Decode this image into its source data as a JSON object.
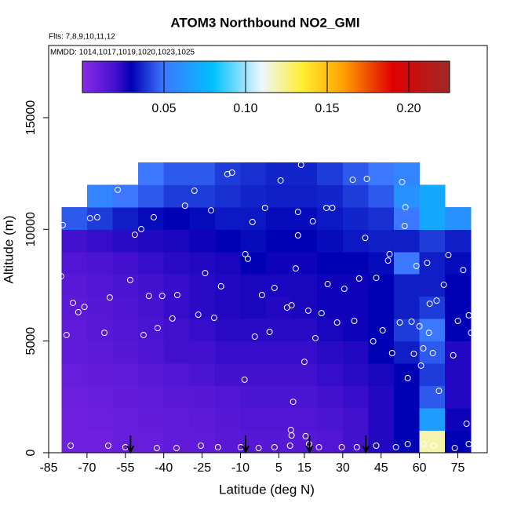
{
  "chart_data": {
    "type": "heatmap",
    "title": "ATOM3 Northbound NO2_GMI",
    "subtitle": "Flts: 7,8,9,10,11,12",
    "annotation": "MMDD: 1014,1017,1019,1020,1023,1025",
    "xlabel": "Latitude (deg N)",
    "ylabel": "Altitude (m)",
    "xlim": [
      -85,
      86.5
    ],
    "ylim": [
      0,
      18230
    ],
    "xticks": [
      -85,
      -70,
      -55,
      -40,
      -25,
      -10,
      5,
      15,
      30,
      45,
      60,
      75
    ],
    "yticks": [
      0,
      5000,
      10000,
      15000
    ],
    "clim": [
      0,
      0.225
    ],
    "cticks": [
      0.05,
      {
        "value": 0.1,
        "label": "0.10"
      },
      0.15,
      {
        "value": 0.2,
        "label": "0.20"
      }
    ],
    "colormap": [
      {
        "value": 0,
        "color": "#8a2be8"
      },
      {
        "value": 0.02,
        "color": "#4410d0"
      },
      {
        "value": 0.03,
        "color": "#0000b4"
      },
      {
        "value": 0.05,
        "color": "#3c78ff"
      },
      {
        "value": 0.08,
        "color": "#00c0ff"
      },
      {
        "value": 0.11,
        "color": "#eef6ff"
      },
      {
        "value": 0.135,
        "color": "#ffee30"
      },
      {
        "value": 0.16,
        "color": "#ffa000"
      },
      {
        "value": 0.19,
        "color": "#e00000"
      },
      {
        "value": 0.225,
        "color": "#a02828"
      }
    ],
    "x_edges": [
      -80,
      -70,
      -60,
      -50,
      -40,
      -30,
      -20,
      -10,
      0,
      10,
      20,
      30,
      40,
      50,
      60,
      70,
      80
    ],
    "y_edges": [
      0,
      1000,
      2000,
      3000,
      4000,
      5000,
      6000,
      7000,
      8000,
      9000,
      10000,
      11000,
      12000,
      13000
    ],
    "z": [
      [
        0.008,
        0.008,
        0.01,
        0.01,
        0.012,
        0.012,
        0.014,
        0.015,
        0.015,
        0.015,
        0.016,
        0.02,
        0.025,
        0.03,
        0.12,
        0.03
      ],
      [
        0.008,
        0.009,
        0.01,
        0.011,
        0.012,
        0.013,
        0.015,
        0.016,
        0.016,
        0.016,
        0.018,
        0.02,
        0.025,
        0.03,
        0.065,
        0.028
      ],
      [
        0.009,
        0.01,
        0.011,
        0.012,
        0.014,
        0.015,
        0.016,
        0.018,
        0.018,
        0.018,
        0.02,
        0.022,
        0.025,
        0.03,
        0.045,
        0.025
      ],
      [
        0.01,
        0.011,
        0.012,
        0.014,
        0.016,
        0.018,
        0.02,
        0.02,
        0.02,
        0.02,
        0.022,
        0.024,
        0.026,
        0.03,
        0.04,
        0.025
      ],
      [
        0.012,
        0.013,
        0.015,
        0.017,
        0.02,
        0.02,
        0.022,
        0.022,
        0.022,
        0.022,
        0.024,
        0.025,
        0.03,
        0.035,
        0.045,
        0.025
      ],
      [
        0.012,
        0.014,
        0.016,
        0.018,
        0.02,
        0.022,
        0.024,
        0.024,
        0.024,
        0.024,
        0.026,
        0.028,
        0.03,
        0.04,
        0.05,
        0.03
      ],
      [
        0.013,
        0.015,
        0.017,
        0.019,
        0.022,
        0.024,
        0.025,
        0.026,
        0.025,
        0.026,
        0.028,
        0.028,
        0.03,
        0.035,
        0.04,
        0.03
      ],
      [
        0.014,
        0.016,
        0.018,
        0.02,
        0.022,
        0.024,
        0.025,
        0.026,
        0.026,
        0.026,
        0.028,
        0.028,
        0.03,
        0.035,
        0.035,
        0.03
      ],
      [
        0.016,
        0.018,
        0.02,
        0.022,
        0.024,
        0.025,
        0.026,
        0.03,
        0.028,
        0.028,
        0.03,
        0.03,
        0.032,
        0.05,
        0.035,
        0.032
      ],
      [
        0.02,
        0.022,
        0.024,
        0.025,
        0.026,
        0.028,
        0.03,
        0.032,
        0.03,
        0.03,
        0.032,
        0.034,
        0.035,
        0.035,
        0.04,
        0.035
      ],
      [
        0.045,
        0.04,
        0.035,
        0.032,
        0.03,
        0.032,
        0.034,
        0.034,
        0.032,
        0.032,
        0.034,
        0.036,
        0.038,
        0.05,
        0.07,
        0.06
      ],
      [
        null,
        0.055,
        0.05,
        0.045,
        0.04,
        0.04,
        0.038,
        0.036,
        0.035,
        0.035,
        0.036,
        0.04,
        0.045,
        0.06,
        0.07,
        null
      ],
      [
        null,
        null,
        null,
        0.05,
        0.045,
        0.045,
        0.04,
        0.038,
        0.036,
        0.036,
        0.04,
        0.045,
        0.05,
        0.055,
        null,
        null
      ]
    ],
    "points_x": [
      -80.1,
      -79.5,
      -78,
      -75.5,
      -73.4,
      -71,
      -68.8,
      -66,
      -63.2,
      -61.1,
      -58,
      -53.1,
      -51.3,
      -48.8,
      -47.9,
      -45.8,
      -43.9,
      -42.4,
      -40.6,
      -36.6,
      -34.7,
      -31.7,
      -28,
      -26.5,
      -23.8,
      -21.5,
      -20.3,
      -17.6,
      -15.1,
      -13.3,
      -9,
      -8.1,
      -8.4,
      -7.1,
      -5.3,
      -4.4,
      -1.6,
      -0.4,
      1.4,
      3.3,
      5.7,
      8.2,
      10,
      10.6,
      11.6,
      12.5,
      12.5,
      13.7,
      15,
      16.5,
      18.3,
      19.3,
      21.7,
      23.6,
      24.1,
      25.9,
      27.8,
      30.6,
      33.9,
      34.5,
      36.4,
      38.8,
      39.4,
      41.9,
      43.1,
      45.6,
      47.7,
      48.3,
      49.3,
      52.3,
      53.2,
      54.2,
      54.5,
      55.4,
      56.9,
      57.8,
      58.8,
      60,
      60.6,
      61.5,
      63,
      63.7,
      64,
      65.2,
      66.7,
      67.6,
      69.5,
      71.3,
      73.2,
      75,
      77.1,
      79.3,
      80.2,
      78.4,
      -76.4,
      -61.7,
      -55,
      -42.7,
      -35,
      -25.5,
      -18.8,
      -9.9,
      -2.9,
      3.3,
      9.4,
      10,
      9.7,
      15.5,
      16.8,
      20.7,
      29.6,
      35.5,
      43.1,
      50.8,
      55.4,
      61.5,
      65.5,
      73.8,
      79.3
    ],
    "points_y": [
      7900,
      10190,
      5270,
      6710,
      6290,
      6530,
      10500,
      10540,
      5370,
      6950,
      11770,
      7730,
      9760,
      10010,
      5270,
      7020,
      10540,
      5580,
      7020,
      6010,
      7060,
      11060,
      11730,
      6180,
      8040,
      10850,
      6040,
      7450,
      12470,
      12540,
      13240,
      8890,
      3270,
      8680,
      10330,
      5200,
      7060,
      10960,
      5410,
      7380,
      12190,
      6500,
      6600,
      2280,
      8250,
      9730,
      10780,
      12890,
      4070,
      6360,
      10360,
      5130,
      6250,
      10960,
      7550,
      10960,
      5830,
      7340,
      12220,
      5900,
      7800,
      9620,
      12260,
      4990,
      7830,
      5480,
      8600,
      8890,
      4460,
      5830,
      12120,
      10150,
      10990,
      3340,
      5870,
      4430,
      8360,
      5660,
      3900,
      4670,
      8500,
      5370,
      6670,
      4460,
      6810,
      2770,
      7520,
      8850,
      4360,
      5900,
      8180,
      6150,
      5370,
      1300,
      316,
      316,
      246,
      210,
      210,
      316,
      246,
      246,
      210,
      246,
      316,
      773,
      1020,
      740,
      386,
      246,
      246,
      246,
      316,
      246,
      386,
      386,
      316,
      210,
      386
    ],
    "arrows_x": [
      -53,
      -8,
      17,
      39
    ]
  }
}
